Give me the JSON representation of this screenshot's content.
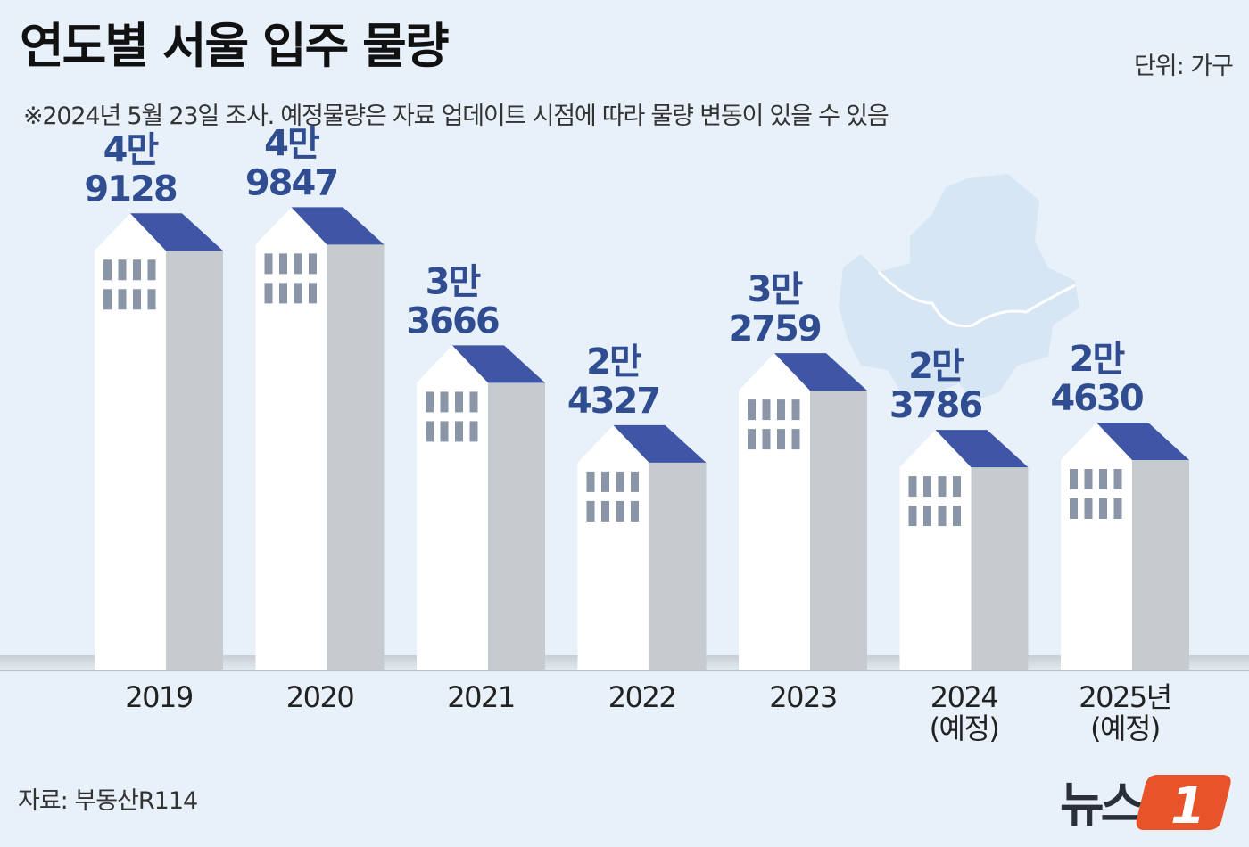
{
  "header": {
    "title": "연도별 서울 입주 물량",
    "unit": "단위: 가구",
    "subtitle": "※2024년 5월 23일 조사. 예정물량은 자료 업데이트 시점에 따라 물량 변동이 있을 수 있음"
  },
  "footer": {
    "source": "자료: 부동산R114",
    "logo_text": "뉴스",
    "logo_mark": "1"
  },
  "colors": {
    "background": "#e8f1f9",
    "roof": "#3f55a6",
    "building_front": "#ffffff",
    "building_side": "#c5cbcf",
    "value_text": "#2f4d90",
    "map": "#d6e6f4",
    "logo_accent": "#e8532a"
  },
  "chart_data": {
    "type": "bar",
    "title": "연도별 서울 입주 물량",
    "unit": "가구",
    "categories": [
      [
        "2019"
      ],
      [
        "2020"
      ],
      [
        "2021"
      ],
      [
        "2022"
      ],
      [
        "2023"
      ],
      [
        "2024",
        "(예정)"
      ],
      [
        "2025년",
        "(예정)"
      ]
    ],
    "values": [
      49128,
      49847,
      33666,
      24327,
      32759,
      23786,
      24630
    ],
    "labels": [
      [
        "4만",
        "9128"
      ],
      [
        "4만",
        "9847"
      ],
      [
        "3만",
        "3666"
      ],
      [
        "2만",
        "4327"
      ],
      [
        "3만",
        "2759"
      ],
      [
        "2만",
        "3786"
      ],
      [
        "2만",
        "4630"
      ]
    ],
    "ylim": [
      0,
      55000
    ],
    "grid": false,
    "legend": "none"
  }
}
